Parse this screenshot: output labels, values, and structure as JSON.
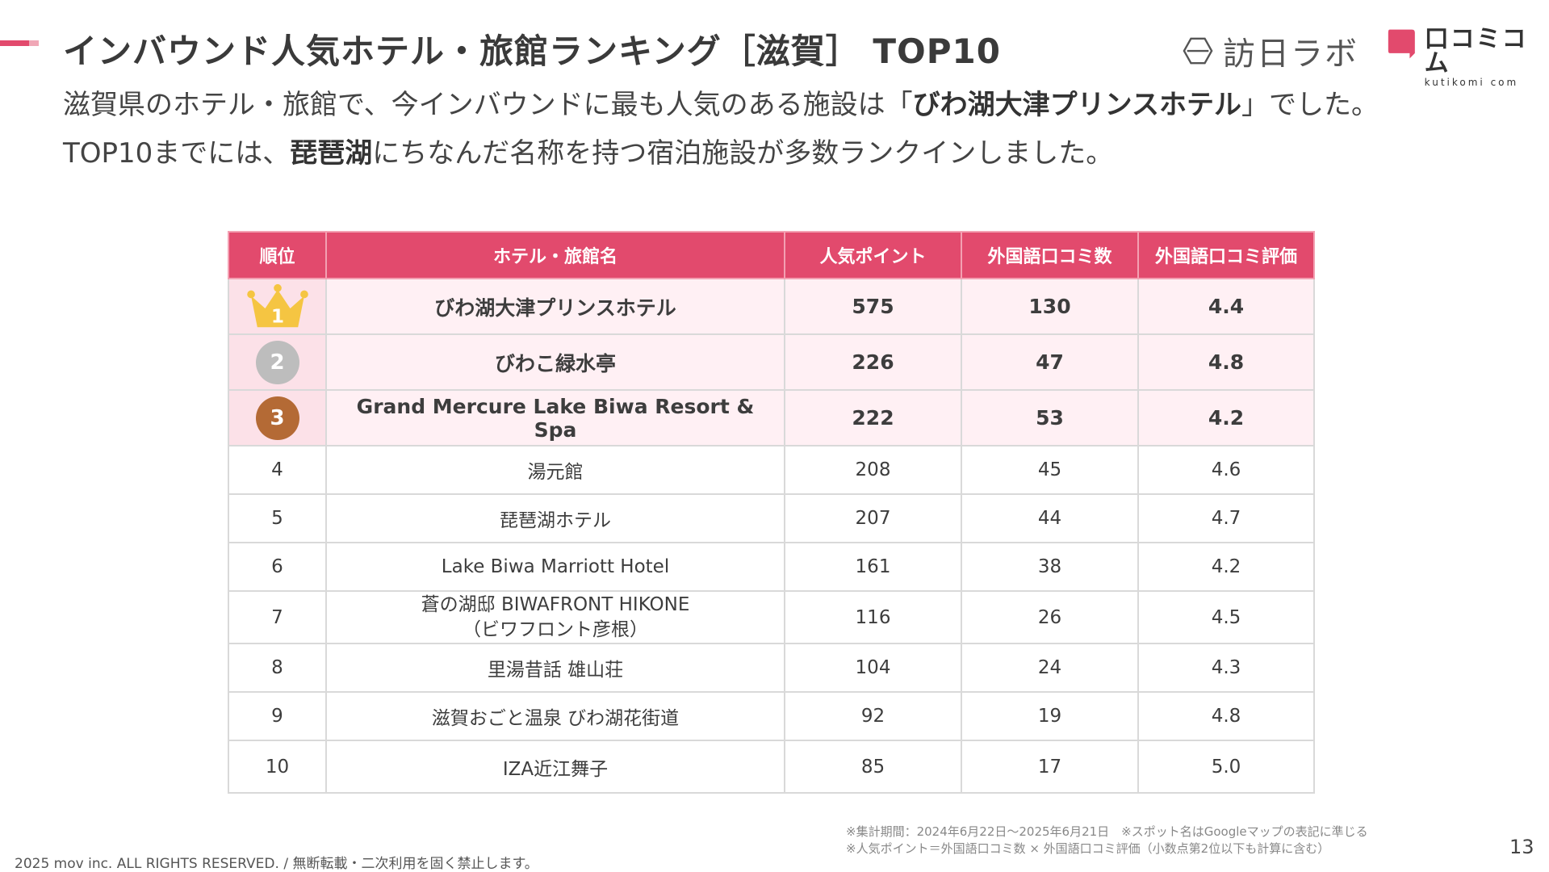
{
  "header": {
    "title": "インバウンド人気ホテル・旅館ランキング［滋賀］ TOP10",
    "logo_houjitsu": "訪日ラボ",
    "logo_kutikomi_jp": "口コミコム",
    "logo_kutikomi_en": "kutikomi com"
  },
  "lead": {
    "line1_pre": "滋賀県のホテル・旅館で、今インバウンドに最も人気のある施設は「",
    "line1_bold": "びわ湖大津プリンスホテル",
    "line1_post": "」でした。",
    "line2_pre": "TOP10までには、",
    "line2_bold": "琵琶湖",
    "line2_post": "にちなんだ名称を持つ宿泊施設が多数ランクインしました。"
  },
  "table": {
    "headers": [
      "順位",
      "ホテル・旅館名",
      "人気ポイント",
      "外国語口コミ数",
      "外国語口コミ評価"
    ],
    "rows": [
      {
        "rank": "1",
        "name": "びわ湖大津プリンスホテル",
        "points": "575",
        "reviews": "130",
        "rating": "4.4"
      },
      {
        "rank": "2",
        "name": "びわこ緑水亭",
        "points": "226",
        "reviews": "47",
        "rating": "4.8"
      },
      {
        "rank": "3",
        "name": "Grand Mercure Lake Biwa Resort & Spa",
        "points": "222",
        "reviews": "53",
        "rating": "4.2"
      },
      {
        "rank": "4",
        "name": "湯元館",
        "points": "208",
        "reviews": "45",
        "rating": "4.6"
      },
      {
        "rank": "5",
        "name": "琵琶湖ホテル",
        "points": "207",
        "reviews": "44",
        "rating": "4.7"
      },
      {
        "rank": "6",
        "name": "Lake Biwa Marriott Hotel",
        "points": "161",
        "reviews": "38",
        "rating": "4.2"
      },
      {
        "rank": "7",
        "name": "蒼の湖邸 BIWAFRONT HIKONE",
        "name2": "（ビワフロント彦根）",
        "points": "116",
        "reviews": "26",
        "rating": "4.5"
      },
      {
        "rank": "8",
        "name": "里湯昔話 雄山荘",
        "points": "104",
        "reviews": "24",
        "rating": "4.3"
      },
      {
        "rank": "9",
        "name": "滋賀おごと温泉 びわ湖花街道",
        "points": "92",
        "reviews": "19",
        "rating": "4.8"
      },
      {
        "rank": "10",
        "name": "IZA近江舞子",
        "points": "85",
        "reviews": "17",
        "rating": "5.0"
      }
    ]
  },
  "notes": {
    "line1": "※集計期間：2024年6月22日〜2025年6月21日　※スポット名はGoogleマップの表記に準じる",
    "line2": "※人気ポイント＝外国語口コミ数 × 外国語口コミ評価（小数点第2位以下も計算に含む）"
  },
  "footer": {
    "copyright": "2025 mov inc. ALL RIGHTS RESERVED. / 無断転載・二次利用を固く禁止します。",
    "page_number": "13"
  },
  "colors": {
    "accent": "#e24a6d",
    "top_row_bg": "#fff0f4",
    "gold": "#f5c542",
    "silver": "#bdbdbd",
    "bronze": "#b46a35"
  }
}
